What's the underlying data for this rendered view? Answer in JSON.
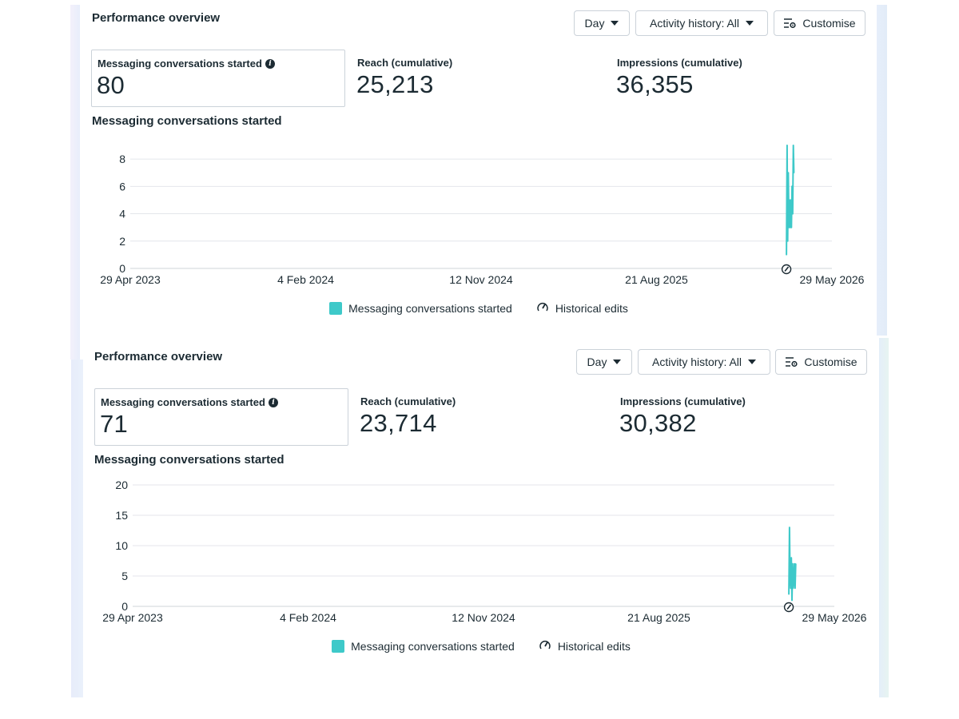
{
  "colors": {
    "series": "#3ec9c9",
    "border": "#cbd2d9",
    "text": "#1c2b33",
    "grid": "#e4e6eb",
    "edge_left": "#eef0fb",
    "edge_right": "#e6f0fa"
  },
  "panels": [
    {
      "title": "Performance overview",
      "controls": {
        "day_label": "Day",
        "activity_label": "Activity history: All",
        "customise_label": "Customise",
        "customise_icon": "sliders-gear-icon"
      },
      "metrics": [
        {
          "label": "Messaging conversations started",
          "value": "80",
          "info_icon": "info-icon"
        },
        {
          "label": "Reach (cumulative)",
          "value": "25,213"
        },
        {
          "label": "Impressions (cumulative)",
          "value": "36,355"
        }
      ],
      "chart_heading": "Messaging conversations started",
      "chart_data": {
        "type": "line",
        "x_tick_labels": [
          "29 Apr 2023",
          "4 Feb 2024",
          "12 Nov 2024",
          "21 Aug 2025",
          "29 May 2026"
        ],
        "x_range": [
          "2023-04-29",
          "2026-05-29"
        ],
        "ylim": [
          0,
          9
        ],
        "y_ticks": [
          0,
          2,
          4,
          6,
          8
        ],
        "grid": true,
        "legend_position": "bottom-center",
        "series": [
          {
            "name": "Messaging conversations started",
            "color": "#3ec9c9",
            "points": [
              [
                "2026-03-17",
                1
              ],
              [
                "2026-03-18",
                9
              ],
              [
                "2026-03-19",
                2
              ],
              [
                "2026-03-20",
                7
              ],
              [
                "2026-03-21",
                3
              ],
              [
                "2026-03-22",
                5
              ],
              [
                "2026-03-23",
                3
              ],
              [
                "2026-03-24",
                5
              ],
              [
                "2026-03-25",
                3
              ],
              [
                "2026-03-26",
                6
              ],
              [
                "2026-03-27",
                4
              ],
              [
                "2026-03-28",
                9
              ],
              [
                "2026-03-29",
                7
              ]
            ]
          }
        ],
        "historical_edit_markers": [
          "2026-03-17"
        ]
      },
      "legend": {
        "series_label": "Messaging conversations started",
        "edits_label": "Historical edits",
        "edits_icon": "pencil-gauge-icon"
      }
    },
    {
      "title": "Performance overview",
      "controls": {
        "day_label": "Day",
        "activity_label": "Activity history: All",
        "customise_label": "Customise",
        "customise_icon": "sliders-gear-icon"
      },
      "metrics": [
        {
          "label": "Messaging conversations started",
          "value": "71",
          "info_icon": "info-icon"
        },
        {
          "label": "Reach (cumulative)",
          "value": "23,714"
        },
        {
          "label": "Impressions (cumulative)",
          "value": "30,382"
        }
      ],
      "chart_heading": "Messaging conversations started",
      "chart_data": {
        "type": "line",
        "x_tick_labels": [
          "29 Apr 2023",
          "4 Feb 2024",
          "12 Nov 2024",
          "21 Aug 2025",
          "29 May 2026"
        ],
        "x_range": [
          "2023-04-29",
          "2026-05-29"
        ],
        "ylim": [
          0,
          20
        ],
        "y_ticks": [
          0,
          5,
          10,
          15,
          20
        ],
        "grid": true,
        "legend_position": "bottom-center",
        "series": [
          {
            "name": "Messaging conversations started",
            "color": "#3ec9c9",
            "points": [
              [
                "2026-03-17",
                2
              ],
              [
                "2026-03-18",
                13
              ],
              [
                "2026-03-19",
                5
              ],
              [
                "2026-03-20",
                3
              ],
              [
                "2026-03-21",
                8
              ],
              [
                "2026-03-22",
                1
              ],
              [
                "2026-03-23",
                7
              ],
              [
                "2026-03-24",
                3
              ],
              [
                "2026-03-25",
                4
              ],
              [
                "2026-03-26",
                7
              ],
              [
                "2026-03-27",
                3
              ],
              [
                "2026-03-28",
                7
              ]
            ]
          }
        ],
        "historical_edit_markers": [
          "2026-03-17"
        ]
      },
      "legend": {
        "series_label": "Messaging conversations started",
        "edits_label": "Historical edits",
        "edits_icon": "pencil-gauge-icon"
      }
    }
  ]
}
